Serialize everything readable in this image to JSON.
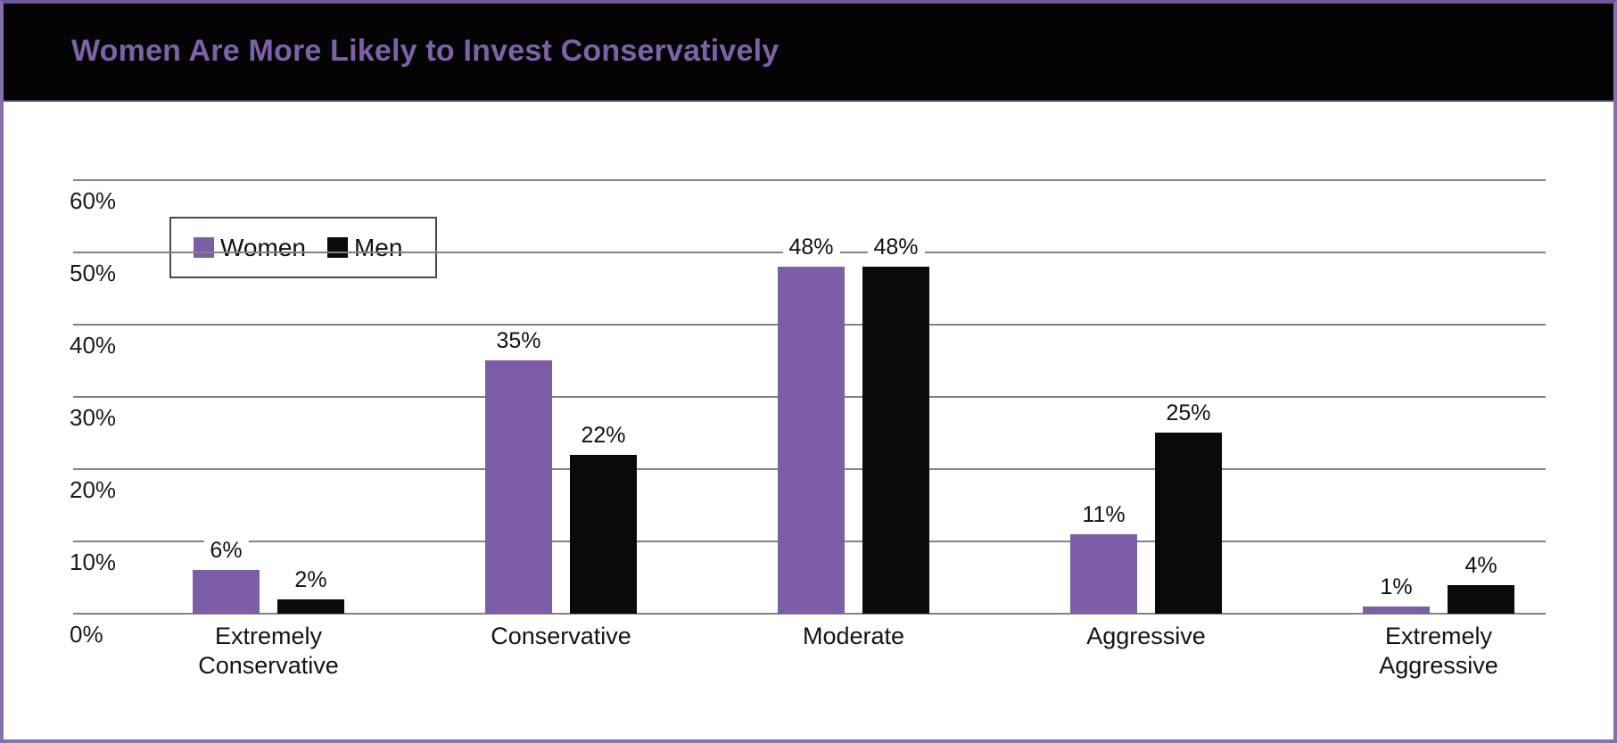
{
  "header": {
    "title": "Women Are More Likely to Invest Conservatively"
  },
  "legend": {
    "items": [
      {
        "label": "Women",
        "swatch_color": "#7d5da6"
      },
      {
        "label": "Men",
        "swatch_color": "#0a0a0a"
      }
    ]
  },
  "chart_data": {
    "type": "bar",
    "title": "Women Are More Likely to Invest Conservatively",
    "categories": [
      "Extremely Conservative",
      "Conservative",
      "Moderate",
      "Aggressive",
      "Extremely Aggressive"
    ],
    "series": [
      {
        "name": "Women",
        "color": "#7d5da6",
        "values": [
          6,
          35,
          48,
          11,
          1
        ]
      },
      {
        "name": "Men",
        "color": "#0a0a0a",
        "values": [
          2,
          22,
          48,
          25,
          4
        ]
      }
    ],
    "value_suffix": "%",
    "xlabel": "",
    "ylabel": "",
    "ylim": [
      0,
      60
    ],
    "yticks": [
      {
        "value": 0,
        "label": "0%"
      },
      {
        "value": 10,
        "label": "10%"
      },
      {
        "value": 20,
        "label": "20%"
      },
      {
        "value": 30,
        "label": "30%"
      },
      {
        "value": 40,
        "label": "40%"
      },
      {
        "value": 50,
        "label": "50%"
      },
      {
        "value": 60,
        "label": "60%"
      }
    ],
    "grid": true,
    "gridline_color": "#828282",
    "legend_position": "top-left-inside"
  },
  "colors": {
    "title_purple": "#7f61a9",
    "accent_purple": "#7d5da6",
    "header_bg": "#040404",
    "frame_purple": "#8671ab"
  }
}
